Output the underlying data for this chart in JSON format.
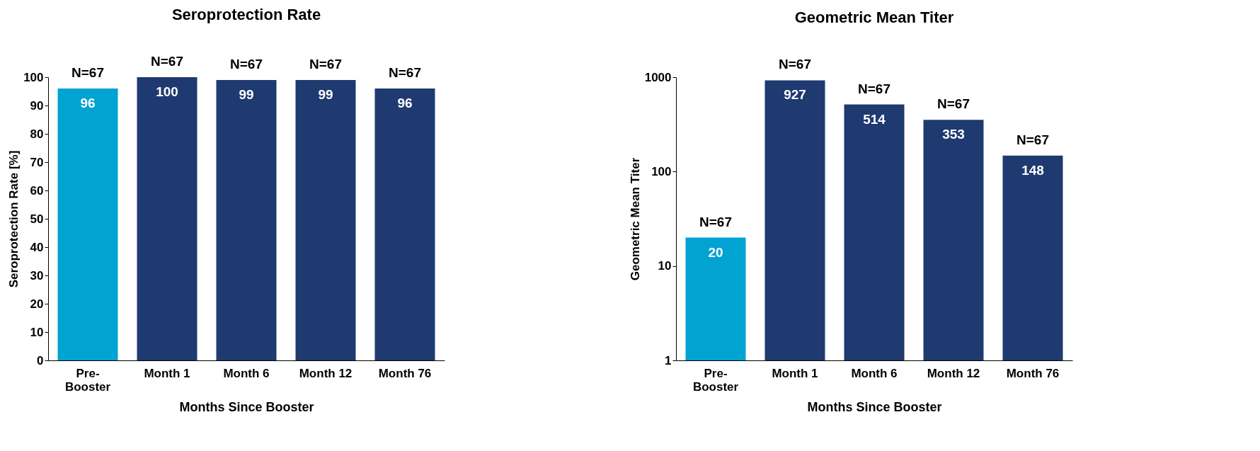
{
  "chart_data": [
    {
      "type": "bar",
      "title": "Seroprotection Rate",
      "xlabel": "Months Since Booster",
      "ylabel": "Seroprotection Rate [%]",
      "categories": [
        "Pre-\nBooster",
        "Month 1",
        "Month 6",
        "Month 12",
        "Month 76"
      ],
      "values": [
        96,
        100,
        99,
        99,
        96
      ],
      "colors": [
        "#00a3d1",
        "#1f3a70",
        "#1f3a70",
        "#1f3a70",
        "#1f3a70"
      ],
      "ylim": [
        0,
        100
      ],
      "yticks": [
        0,
        10,
        20,
        30,
        40,
        50,
        60,
        70,
        80,
        90,
        100
      ],
      "data_labels": true,
      "grid": false,
      "legend": false,
      "annotations": [
        {
          "text": "N=67",
          "x": "Pre-\nBooster",
          "y": 96
        },
        {
          "text": "N=67",
          "x": "Month 1",
          "y": 100
        },
        {
          "text": "N=67",
          "x": "Month 6",
          "y": 99
        },
        {
          "text": "N=67",
          "x": "Month 12",
          "y": 99
        },
        {
          "text": "N=67",
          "x": "Month 76",
          "y": 96
        }
      ]
    },
    {
      "type": "bar",
      "title": "Geometric Mean Titer",
      "xlabel": "Months Since Booster",
      "ylabel": "Geometric Mean Titer",
      "categories": [
        "Pre-\nBooster",
        "Month 1",
        "Month 6",
        "Month 12",
        "Month 76"
      ],
      "values": [
        20,
        927,
        514,
        353,
        148
      ],
      "colors": [
        "#00a3d1",
        "#1f3a70",
        "#1f3a70",
        "#1f3a70",
        "#1f3a70"
      ],
      "ylim": [
        1,
        1000
      ],
      "yticks": [
        1,
        10,
        100,
        1000
      ],
      "log": true,
      "data_labels": true,
      "grid": false,
      "legend": false,
      "annotations": [
        {
          "text": "N=67",
          "x": "Pre-\nBooster",
          "y": 20
        },
        {
          "text": "N=67",
          "x": "Month 1",
          "y": 927
        },
        {
          "text": "N=67",
          "x": "Month 6",
          "y": 514
        },
        {
          "text": "N=67",
          "x": "Month 12",
          "y": 353
        },
        {
          "text": "N=67",
          "x": "Month 76",
          "y": 148
        }
      ]
    }
  ]
}
